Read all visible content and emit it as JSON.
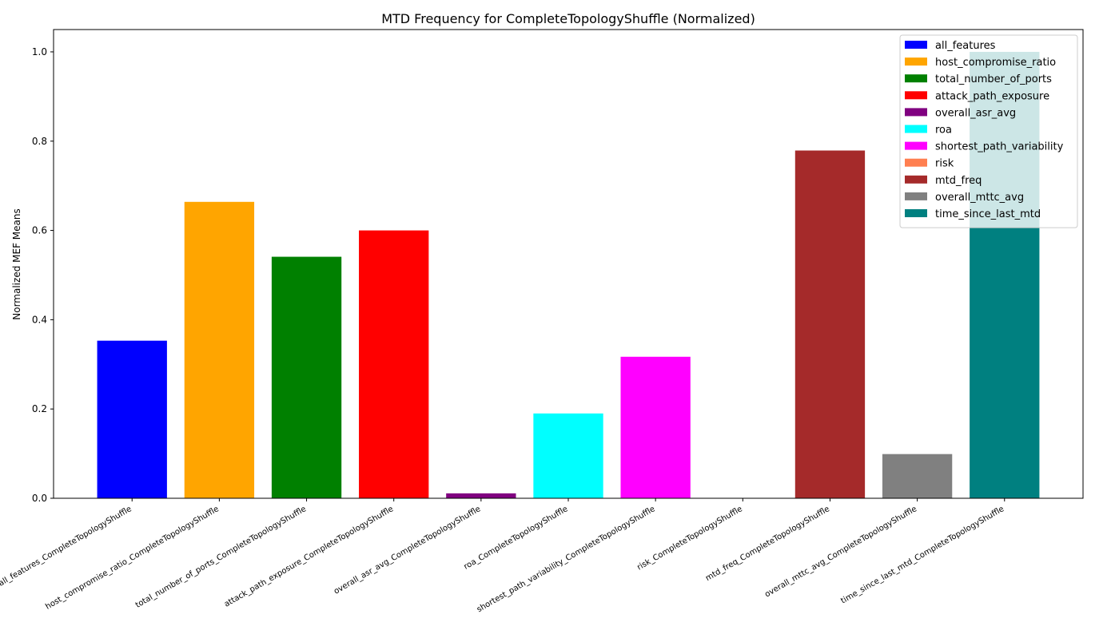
{
  "chart_data": {
    "type": "bar",
    "title": "MTD Frequency for CompleteTopologyShuffle (Normalized)",
    "xlabel": "",
    "ylabel": "Normalized MEF Means",
    "ylim": [
      0,
      1.05
    ],
    "yticks": [
      "0.0",
      "0.2",
      "0.4",
      "0.6",
      "0.8",
      "1.0"
    ],
    "ytick_values": [
      0,
      0.2,
      0.4,
      0.6,
      0.8,
      1.0
    ],
    "grid": false,
    "legend_position": "top-right",
    "categories": [
      "all_features_CompleteTopologyShuffle",
      "host_compromise_ratio_CompleteTopologyShuffle",
      "total_number_of_ports_CompleteTopologyShuffle",
      "attack_path_exposure_CompleteTopologyShuffle",
      "overall_asr_avg_CompleteTopologyShuffle",
      "roa_CompleteTopologyShuffle",
      "shortest_path_variability_CompleteTopologyShuffle",
      "risk_CompleteTopologyShuffle",
      "mtd_freq_CompleteTopologyShuffle",
      "overall_mttc_avg_CompleteTopologyShuffle",
      "time_since_last_mtd_CompleteTopologyShuffle"
    ],
    "values": [
      0.353,
      0.664,
      0.541,
      0.6,
      0.011,
      0.19,
      0.317,
      0.0,
      0.779,
      0.099,
      1.0
    ],
    "colors": [
      "#0000ff",
      "#ffa500",
      "#008000",
      "#ff0000",
      "#800080",
      "#00ffff",
      "#ff00ff",
      "#ff7f50",
      "#a52a2a",
      "#808080",
      "#008080"
    ],
    "legend": [
      {
        "label": "all_features",
        "color": "#0000ff"
      },
      {
        "label": "host_compromise_ratio",
        "color": "#ffa500"
      },
      {
        "label": "total_number_of_ports",
        "color": "#008000"
      },
      {
        "label": "attack_path_exposure",
        "color": "#ff0000"
      },
      {
        "label": "overall_asr_avg",
        "color": "#800080"
      },
      {
        "label": "roa",
        "color": "#00ffff"
      },
      {
        "label": "shortest_path_variability",
        "color": "#ff00ff"
      },
      {
        "label": "risk",
        "color": "#ff7f50"
      },
      {
        "label": "mtd_freq",
        "color": "#a52a2a"
      },
      {
        "label": "overall_mttc_avg",
        "color": "#808080"
      },
      {
        "label": "time_since_last_mtd",
        "color": "#008080"
      }
    ]
  }
}
